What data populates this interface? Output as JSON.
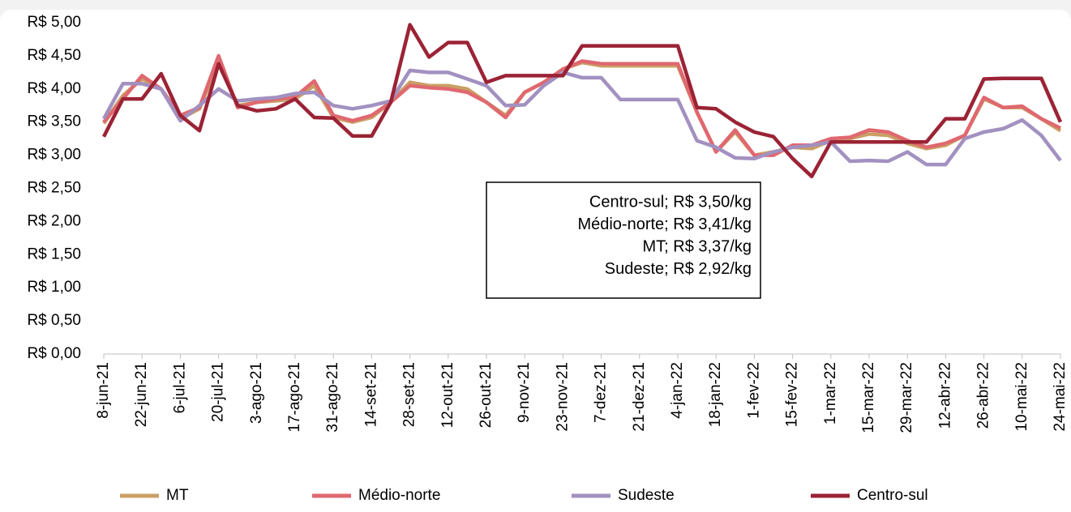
{
  "chart_data": {
    "type": "line",
    "categories": [
      "8-jun-21",
      null,
      "22-jun-21",
      null,
      "6-jul-21",
      null,
      "20-jul-21",
      null,
      "3-ago-21",
      null,
      "17-ago-21",
      null,
      "31-ago-21",
      null,
      "14-set-21",
      null,
      "28-set-21",
      null,
      "12-out-21",
      null,
      "26-out-21",
      null,
      "9-nov-21",
      null,
      "23-nov-21",
      null,
      "7-dez-21",
      null,
      "21-dez-21",
      null,
      "4-jan-22",
      null,
      "18-jan-22",
      null,
      "1-fev-22",
      null,
      "15-fev-22",
      null,
      "1-mar-22",
      null,
      "15-mar-22",
      null,
      "29-mar-22",
      null,
      "12-abr-22",
      null,
      "26-abr-22",
      null,
      "10-mai-22",
      null,
      "24-mai-22"
    ],
    "series": [
      {
        "name": "MT",
        "color": "#c9a063",
        "values": [
          3.48,
          3.9,
          4.15,
          4.0,
          3.55,
          3.7,
          4.4,
          3.75,
          3.8,
          3.82,
          3.85,
          4.05,
          3.57,
          3.5,
          3.57,
          3.8,
          4.1,
          4.05,
          4.05,
          4.0,
          3.8,
          3.6,
          3.95,
          4.1,
          4.3,
          4.4,
          4.35,
          4.35,
          4.35,
          4.35,
          4.35,
          3.65,
          3.05,
          3.35,
          3.0,
          3.05,
          3.12,
          3.1,
          3.22,
          3.25,
          3.32,
          3.3,
          3.18,
          3.1,
          3.15,
          3.3,
          3.85,
          3.72,
          3.72,
          3.55,
          3.37
        ]
      },
      {
        "name": "Médio-norte",
        "color": "#e06870",
        "values": [
          3.5,
          3.85,
          4.2,
          4.0,
          3.6,
          3.72,
          4.5,
          3.72,
          3.8,
          3.85,
          3.88,
          4.12,
          3.6,
          3.52,
          3.6,
          3.8,
          4.05,
          4.02,
          4.0,
          3.95,
          3.8,
          3.57,
          3.95,
          4.1,
          4.3,
          4.42,
          4.38,
          4.38,
          4.38,
          4.38,
          4.38,
          3.65,
          3.05,
          3.38,
          3.0,
          3.0,
          3.15,
          3.15,
          3.25,
          3.27,
          3.38,
          3.35,
          3.22,
          3.12,
          3.18,
          3.3,
          3.87,
          3.72,
          3.74,
          3.55,
          3.41
        ]
      },
      {
        "name": "Sudeste",
        "color": "#a291c0",
        "values": [
          3.55,
          4.08,
          4.08,
          4.0,
          3.52,
          3.75,
          4.0,
          3.82,
          3.85,
          3.87,
          3.93,
          3.95,
          3.75,
          3.7,
          3.75,
          3.82,
          4.28,
          4.25,
          4.25,
          4.15,
          4.05,
          3.75,
          3.76,
          4.05,
          4.25,
          4.17,
          4.17,
          3.84,
          3.84,
          3.84,
          3.84,
          3.22,
          3.12,
          2.96,
          2.95,
          3.05,
          3.12,
          3.15,
          3.2,
          2.91,
          2.92,
          2.91,
          3.05,
          2.86,
          2.86,
          3.25,
          3.35,
          3.4,
          3.53,
          3.3,
          2.92
        ]
      },
      {
        "name": "Centro-sul",
        "color": "#9b2335",
        "values": [
          3.28,
          3.85,
          3.85,
          4.23,
          3.6,
          3.37,
          4.38,
          3.75,
          3.67,
          3.7,
          3.85,
          3.57,
          3.56,
          3.29,
          3.29,
          3.8,
          4.97,
          4.48,
          4.7,
          4.7,
          4.1,
          4.2,
          4.2,
          4.2,
          4.2,
          4.65,
          4.65,
          4.65,
          4.65,
          4.65,
          4.65,
          3.72,
          3.7,
          3.5,
          3.35,
          3.28,
          2.95,
          2.68,
          3.2,
          3.2,
          3.2,
          3.2,
          3.2,
          3.2,
          3.55,
          3.55,
          4.15,
          4.16,
          4.16,
          4.16,
          3.5
        ]
      }
    ],
    "ylim": [
      0,
      5
    ],
    "yticks": [
      {
        "value": 0,
        "label": "R$ 0,00"
      },
      {
        "value": 0.5,
        "label": "R$ 0,50"
      },
      {
        "value": 1,
        "label": "R$ 1,00"
      },
      {
        "value": 1.5,
        "label": "R$ 1,50"
      },
      {
        "value": 2,
        "label": "R$ 2,00"
      },
      {
        "value": 2.5,
        "label": "R$ 2,50"
      },
      {
        "value": 3,
        "label": "R$ 3,00"
      },
      {
        "value": 3.5,
        "label": "R$ 3,50"
      },
      {
        "value": 4,
        "label": "R$ 4,00"
      },
      {
        "value": 4.5,
        "label": "R$ 4,50"
      },
      {
        "value": 5,
        "label": "R$ 5,00"
      }
    ],
    "grid": false,
    "annotations": [
      "Centro-sul; R$ 3,50/kg",
      "Médio-norte; R$ 3,41/kg",
      "MT; R$ 3,37/kg",
      "Sudeste; R$ 2,92/kg"
    ]
  }
}
